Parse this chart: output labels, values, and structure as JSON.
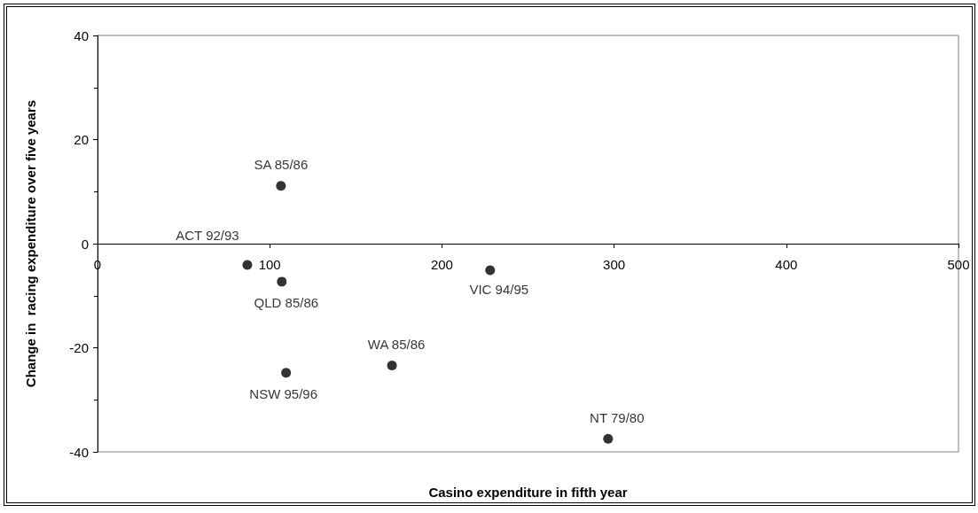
{
  "chart_data": {
    "type": "scatter",
    "xlabel": "Casino expenditure in fifth year",
    "ylabel": "Change in  racing expenditure over five years",
    "x": [
      87,
      106.5,
      107,
      109.5,
      171,
      228,
      296.5
    ],
    "series": [
      {
        "color": "#000000",
        "values": [
          -4.1,
          11.1,
          -7.3,
          -24.8,
          -23.4,
          -5.1,
          -37.5
        ],
        "value_labels": [
          "ACT 92/93",
          "SA 85/86",
          "QLD 85/86",
          "NSW 95/96",
          "WA 85/86",
          "VIC 94/95",
          "NT 79/80"
        ]
      }
    ],
    "xlim": [
      0,
      500
    ],
    "xticks": [
      0,
      100,
      200,
      300,
      400,
      500
    ],
    "ylim": [
      -40,
      40
    ],
    "yticks": [
      -40,
      -20,
      0,
      20,
      40
    ],
    "marker": "circle"
  }
}
